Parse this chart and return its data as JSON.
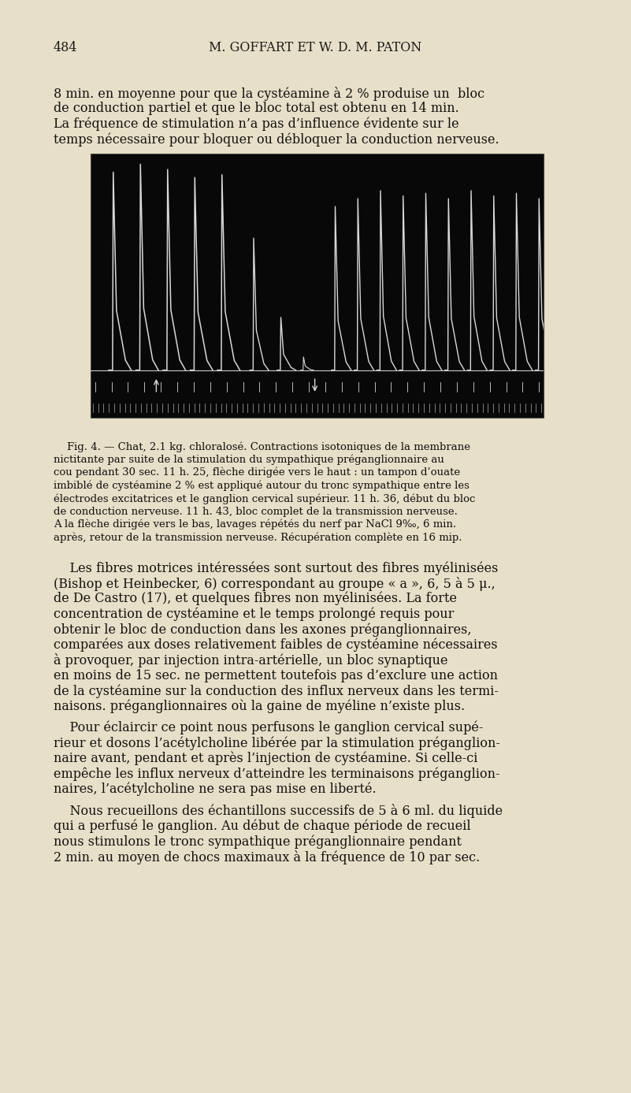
{
  "page_bg": "#e8dfc8",
  "page_number": "484",
  "header_text": "M. GOFFART ET W. D. M. PATON",
  "para1_lines": [
    "8 min. en moyenne pour que la cystéamine à 2 % produise un  bloc",
    "de conduction partiel et que le bloc total est obtenu en 14 min.",
    "La fréquence de stimulation n’a pas d’influence évidente sur le",
    "temps nécessaire pour bloquer ou débloquer la conduction nerveuse."
  ],
  "fig_caption_lines": [
    "    Fig. 4. — Chat, 2.1 kg. chloralosé. Contractions isotoniques de la membrane",
    "nictitante par suite de la stimulation du sympathique préganglionnaire au",
    "cou pendant 30 sec. 11 h. 25, flèche dirigée vers le haut : un tampon d’ouate",
    "imbiblé de cystéamine 2 % est appliqué autour du tronc sympathique entre les",
    "électrodes excitatrices et le ganglion cervical supérieur. 11 h. 36, début du bloc",
    "de conduction nerveuse. 11 h. 43, bloc complet de la transmission nerveuse.",
    "A la flèche dirigée vers le bas, lavages répétés du nerf par NaCl 9‰, 6 min.",
    "après, retour de la transmission nerveuse. Récupération complète en 16 mip."
  ],
  "para2_lines": [
    "    Les fibres motrices intéressées sont surtout des fibres myélinisées",
    "(Bishop et Heinbecker, 6) correspondant au groupe « a », 6, 5 à 5 μ.,",
    "de De Castro (17), et quelques fibres non myélinisées. La forte",
    "concentration de cystéamine et le temps prolongé requis pour",
    "obtenir le bloc de conduction dans les axones préganglionnaires,",
    "comparées aux doses relativement faibles de cystéamine nécessaires",
    "à provoquer, par injection intra-artérielle, un bloc synaptique",
    "en moins de 15 sec. ne permettent toutefois pas d’exclure une action",
    "de la cystéamine sur la conduction des influx nerveux dans les termi-",
    "naisons. préganglionnaires où la gaine de myéline n’existe plus."
  ],
  "para3_lines": [
    "    Pour éclaircir ce point nous perfusons le ganglion cervical supé-",
    "rieur et dosons l’acétylcholine libérée par la stimulation préganglion-",
    "naire avant, pendant et après l’injection de cystéamine. Si celle-ci",
    "empêche les influx nerveux d’atteindre les terminaisons préganglion-",
    "naires, l’acétylcholine ne sera pas mise en liberté."
  ],
  "para4_lines": [
    "    Nous recueillons des échantillons successifs de 5 à 6 ml. du liquide",
    "qui a perfusé le ganglion. Au début de chaque période de recueil",
    "nous stimulons le tronc sympathique préganglionnaire pendant",
    "2 min. au moyen de chocs maximaux à la fréquence de 10 par sec."
  ],
  "oscillo_bg": "#080808",
  "oscillo_line_color": "#d8d8d8"
}
